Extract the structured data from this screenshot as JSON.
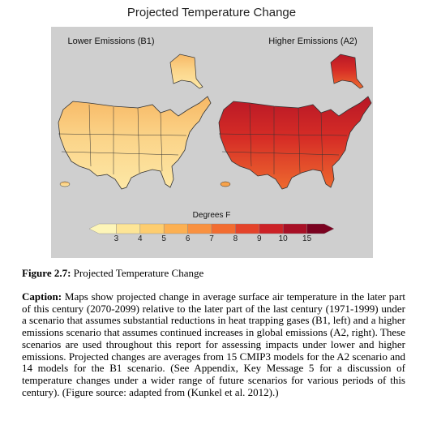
{
  "figure": {
    "title": "Projected Temperature Change",
    "maps": [
      {
        "label": "Lower Emissions (B1)"
      },
      {
        "label": "Higher Emissions (A2)"
      }
    ],
    "legend": {
      "title": "Degrees F",
      "ticks": [
        3,
        4,
        5,
        6,
        7,
        8,
        9,
        10,
        15
      ],
      "colors": [
        "#fdf5b8",
        "#fde596",
        "#fdcd6f",
        "#fcb052",
        "#f99140",
        "#f26c30",
        "#e4432a",
        "#cc2227",
        "#a81026",
        "#7a0220"
      ]
    },
    "figure_label": "Figure 2.7:",
    "figure_title": "Projected Temperature Change",
    "caption_label": "Caption:",
    "caption_text": "Maps show projected change in average surface air temperature in the later part of this century (2070-2099) relative to the later part of the last century (1971-1999) under a scenario that assumes substantial reductions in heat trapping gases (B1, left) and a higher emissions scenario that assumes continued increases in global emissions (A2, right). These scenarios are used throughout this report for assessing impacts under lower and higher emissions. Projected changes are averages from 15 CMIP3 models for the A2 scenario and 14 models for the B1 scenario. (See Appendix, Key Message 5 for a discussion of temperature changes under a wider range of future scenarios for various periods of this century). (Figure source: adapted from (Kunkel et al. 2012).)"
  }
}
